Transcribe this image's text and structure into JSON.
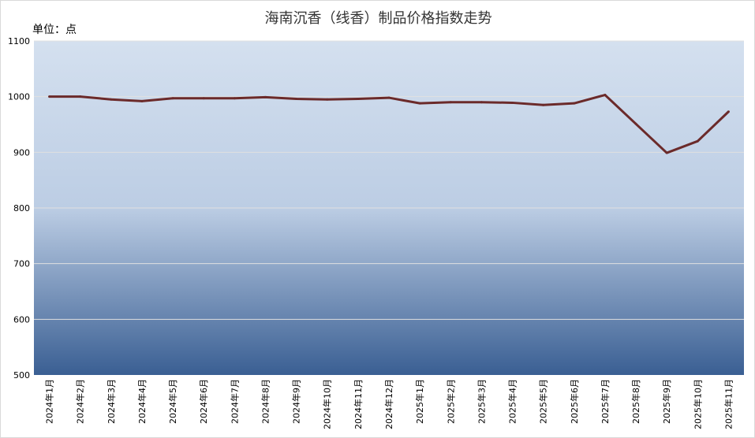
{
  "chart_data": {
    "type": "line",
    "title": "海南沉香（线香）制品价格指数走势",
    "unit_label": "单位：点",
    "categories": [
      "2024年1月",
      "2024年2月",
      "2024年3月",
      "2024年4月",
      "2024年5月",
      "2024年6月",
      "2024年7月",
      "2024年8月",
      "2024年9月",
      "2024年10月",
      "2024年11月",
      "2024年12月",
      "2025年1月",
      "2025年2月",
      "2025年3月",
      "2025年4月",
      "2025年5月",
      "2025年6月",
      "2025年7月",
      "2025年8月",
      "2025年9月",
      "2025年10月",
      "2025年11月"
    ],
    "series": [
      {
        "values": [
          1000,
          1000,
          995,
          992,
          997,
          997,
          997,
          999,
          996,
          995,
          996,
          998,
          988,
          990,
          990,
          989,
          985,
          988,
          1003,
          951,
          899,
          920,
          973
        ],
        "color": "#6b2a2a"
      }
    ],
    "ylim": [
      500,
      1100
    ],
    "yticks": [
      500,
      600,
      700,
      800,
      900,
      1000,
      1100
    ],
    "grid": true,
    "legend": "none",
    "background_gradient": [
      "#d4e0ef",
      "#bccde4",
      "#3a5f93"
    ]
  }
}
